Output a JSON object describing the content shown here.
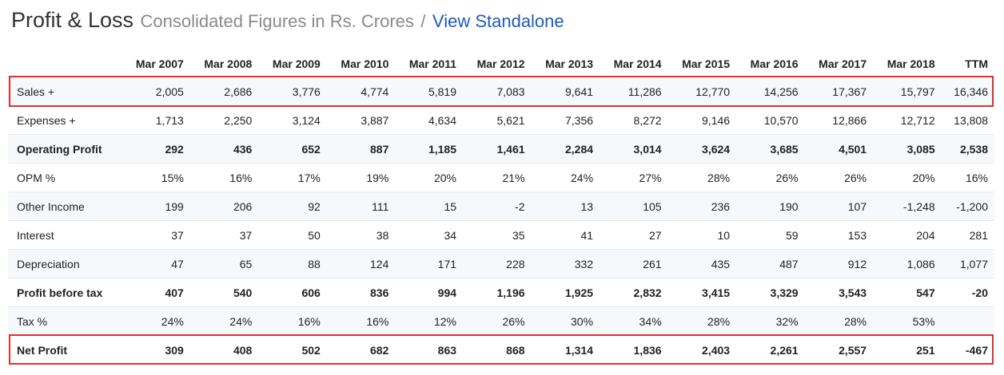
{
  "header": {
    "title": "Profit & Loss",
    "subtitle": "Consolidated Figures in Rs. Crores",
    "separator": "/",
    "link_label": "View Standalone"
  },
  "table": {
    "columns": [
      "",
      "Mar 2007",
      "Mar 2008",
      "Mar 2009",
      "Mar 2010",
      "Mar 2011",
      "Mar 2012",
      "Mar 2013",
      "Mar 2014",
      "Mar 2015",
      "Mar 2016",
      "Mar 2017",
      "Mar 2018",
      "TTM"
    ],
    "rows": [
      {
        "label": "Sales +",
        "bold": false,
        "expandable": true,
        "highlighted": true,
        "values": [
          "2,005",
          "2,686",
          "3,776",
          "4,774",
          "5,819",
          "7,083",
          "9,641",
          "11,286",
          "12,770",
          "14,256",
          "17,367",
          "15,797",
          "16,346"
        ]
      },
      {
        "label": "Expenses +",
        "bold": false,
        "expandable": true,
        "highlighted": false,
        "values": [
          "1,713",
          "2,250",
          "3,124",
          "3,887",
          "4,634",
          "5,621",
          "7,356",
          "8,272",
          "9,146",
          "10,570",
          "12,866",
          "12,712",
          "13,808"
        ]
      },
      {
        "label": "Operating Profit",
        "bold": true,
        "expandable": false,
        "highlighted": false,
        "values": [
          "292",
          "436",
          "652",
          "887",
          "1,185",
          "1,461",
          "2,284",
          "3,014",
          "3,624",
          "3,685",
          "4,501",
          "3,085",
          "2,538"
        ]
      },
      {
        "label": "OPM %",
        "bold": false,
        "expandable": false,
        "highlighted": false,
        "values": [
          "15%",
          "16%",
          "17%",
          "19%",
          "20%",
          "21%",
          "24%",
          "27%",
          "28%",
          "26%",
          "26%",
          "20%",
          "16%"
        ]
      },
      {
        "label": "Other Income",
        "bold": false,
        "expandable": false,
        "highlighted": false,
        "values": [
          "199",
          "206",
          "92",
          "111",
          "15",
          "-2",
          "13",
          "105",
          "236",
          "190",
          "107",
          "-1,248",
          "-1,200"
        ]
      },
      {
        "label": "Interest",
        "bold": false,
        "expandable": false,
        "highlighted": false,
        "values": [
          "37",
          "37",
          "50",
          "38",
          "34",
          "35",
          "41",
          "27",
          "10",
          "59",
          "153",
          "204",
          "281"
        ]
      },
      {
        "label": "Depreciation",
        "bold": false,
        "expandable": false,
        "highlighted": false,
        "values": [
          "47",
          "65",
          "88",
          "124",
          "171",
          "228",
          "332",
          "261",
          "435",
          "487",
          "912",
          "1,086",
          "1,077"
        ]
      },
      {
        "label": "Profit before tax",
        "bold": true,
        "expandable": false,
        "highlighted": false,
        "values": [
          "407",
          "540",
          "606",
          "836",
          "994",
          "1,196",
          "1,925",
          "2,832",
          "3,415",
          "3,329",
          "3,543",
          "547",
          "-20"
        ]
      },
      {
        "label": "Tax %",
        "bold": false,
        "expandable": false,
        "highlighted": false,
        "values": [
          "24%",
          "24%",
          "16%",
          "16%",
          "12%",
          "26%",
          "30%",
          "34%",
          "28%",
          "32%",
          "28%",
          "53%",
          ""
        ]
      },
      {
        "label": "Net Profit",
        "bold": true,
        "expandable": false,
        "highlighted": true,
        "values": [
          "309",
          "408",
          "502",
          "682",
          "863",
          "868",
          "1,314",
          "1,836",
          "2,403",
          "2,261",
          "2,557",
          "251",
          "-467"
        ]
      }
    ]
  },
  "colors": {
    "highlight": "#e03030",
    "link": "#1f5ac1",
    "stripe": "#f6f8fb"
  }
}
